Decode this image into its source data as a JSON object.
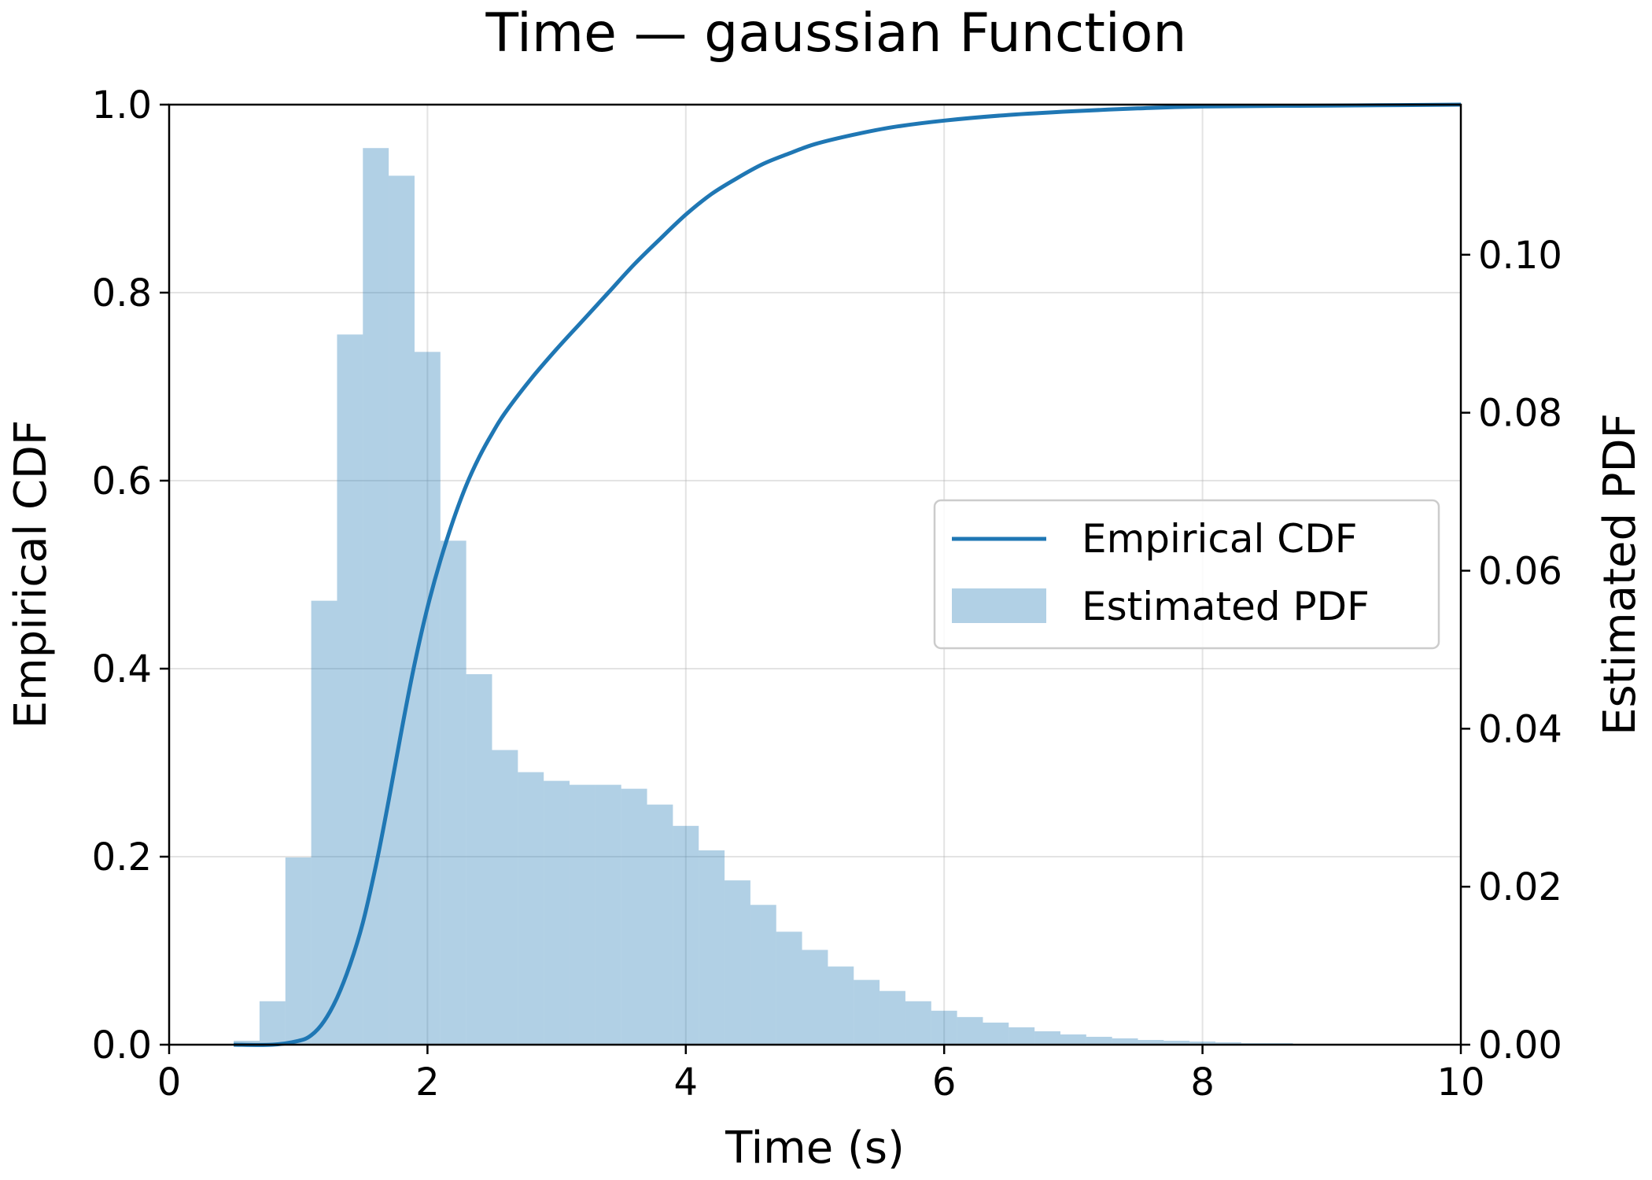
{
  "chart_data": {
    "type": "bar",
    "title": "Time — gaussian Function",
    "xlabel": "Time (s)",
    "ylabel_left": "Empirical CDF",
    "ylabel_right": "Estimated PDF",
    "xlim": [
      0,
      10
    ],
    "ylim_left": [
      0,
      1.0
    ],
    "ylim_right": [
      0,
      0.119
    ],
    "xticks": [
      "0",
      "2",
      "4",
      "6",
      "8",
      "10"
    ],
    "yticks_left": [
      "0.0",
      "0.2",
      "0.4",
      "0.6",
      "0.8",
      "1.0"
    ],
    "yticks_right": [
      "0.00",
      "0.02",
      "0.04",
      "0.06",
      "0.08",
      "0.10"
    ],
    "grid": true,
    "legend_position": "center-right",
    "colors": {
      "cdf_line": "#1f77b4",
      "pdf_bars": "#1f77b4",
      "pdf_bar_alpha": 0.35
    },
    "series": [
      {
        "name": "Empirical CDF",
        "kind": "line",
        "axis": "left",
        "x": [
          0.5,
          0.8,
          1.0,
          1.1,
          1.2,
          1.3,
          1.4,
          1.5,
          1.6,
          1.7,
          1.8,
          1.9,
          2.0,
          2.1,
          2.2,
          2.3,
          2.4,
          2.5,
          2.6,
          2.8,
          3.0,
          3.2,
          3.4,
          3.6,
          3.8,
          4.0,
          4.2,
          4.4,
          4.6,
          4.8,
          5.0,
          5.3,
          5.6,
          6.0,
          6.5,
          7.0,
          7.5,
          8.0,
          9.0,
          10.0
        ],
        "y": [
          0.0,
          0.0,
          0.004,
          0.01,
          0.025,
          0.05,
          0.085,
          0.13,
          0.19,
          0.26,
          0.335,
          0.405,
          0.465,
          0.515,
          0.558,
          0.595,
          0.625,
          0.65,
          0.672,
          0.708,
          0.74,
          0.77,
          0.8,
          0.83,
          0.857,
          0.883,
          0.905,
          0.922,
          0.937,
          0.948,
          0.958,
          0.968,
          0.976,
          0.983,
          0.989,
          0.993,
          0.996,
          0.998,
          0.999,
          1.0
        ]
      },
      {
        "name": "Estimated PDF",
        "kind": "histogram",
        "axis": "right",
        "bin_edges": [
          0.5,
          0.7,
          0.9,
          1.1,
          1.3,
          1.5,
          1.7,
          1.9,
          2.1,
          2.3,
          2.5,
          2.7,
          2.9,
          3.1,
          3.3,
          3.5,
          3.7,
          3.9,
          4.1,
          4.3,
          4.5,
          4.7,
          4.9,
          5.1,
          5.3,
          5.5,
          5.7,
          5.9,
          6.1,
          6.3,
          6.5,
          6.7,
          6.9,
          7.1,
          7.3,
          7.5,
          7.7,
          7.9,
          8.1,
          8.3,
          8.5,
          8.7,
          8.9,
          9.1,
          9.3
        ],
        "values": [
          0.0005,
          0.0055,
          0.0237,
          0.0562,
          0.0899,
          0.1135,
          0.11,
          0.0877,
          0.0638,
          0.0469,
          0.0373,
          0.0345,
          0.0334,
          0.0329,
          0.0329,
          0.0324,
          0.0304,
          0.0277,
          0.0246,
          0.0208,
          0.0177,
          0.0143,
          0.012,
          0.0099,
          0.0082,
          0.0068,
          0.0055,
          0.0043,
          0.0035,
          0.0028,
          0.0022,
          0.0017,
          0.0013,
          0.001,
          0.0008,
          0.0006,
          0.0005,
          0.0004,
          0.0003,
          0.0002,
          0.0002,
          0.0001,
          0.0001,
          0.0001
        ]
      }
    ]
  }
}
